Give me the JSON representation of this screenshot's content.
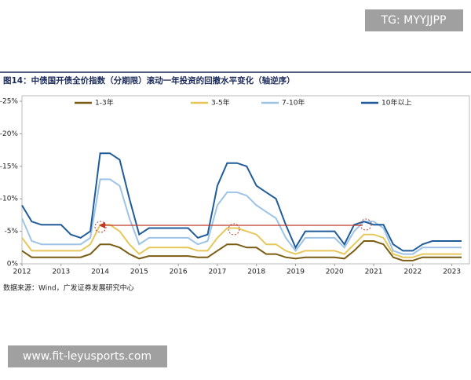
{
  "chart_data": {
    "type": "line",
    "title": "图14：中债国开债全价指数（分期限）滚动一年投资的回撤水平变化（轴逆序）",
    "source": "数据来源：Wind，广发证券发展研究中心",
    "watermark_top": "TG: MYYJJPP",
    "watermark_bottom": "www.fit-leyusports.com",
    "x": [
      2012.0,
      2012.25,
      2012.5,
      2012.75,
      2013.0,
      2013.25,
      2013.5,
      2013.75,
      2014.0,
      2014.25,
      2014.5,
      2014.75,
      2015.0,
      2015.25,
      2015.5,
      2015.75,
      2016.0,
      2016.25,
      2016.5,
      2016.75,
      2017.0,
      2017.25,
      2017.5,
      2017.75,
      2018.0,
      2018.25,
      2018.5,
      2018.75,
      2019.0,
      2019.25,
      2019.5,
      2019.75,
      2020.0,
      2020.25,
      2020.5,
      2020.75,
      2021.0,
      2021.25,
      2021.5,
      2021.75,
      2022.0,
      2022.25,
      2022.5,
      2022.75,
      2023.0,
      2023.25
    ],
    "xlim": [
      2012,
      2023.45
    ],
    "xticks": [
      2012,
      2013,
      2014,
      2015,
      2016,
      2017,
      2018,
      2019,
      2020,
      2021,
      2022,
      2023
    ],
    "ylim": [
      0,
      -25
    ],
    "yticks": [
      {
        "value": -25,
        "label": "-25%"
      },
      {
        "value": -20,
        "label": "-20%"
      },
      {
        "value": -15,
        "label": "-15%"
      },
      {
        "value": -10,
        "label": "-10%"
      },
      {
        "value": -5,
        "label": "-5%"
      },
      {
        "value": 0,
        "label": "0%"
      }
    ],
    "series": [
      {
        "name": "1-3年",
        "color": "#7a5c12",
        "values": [
          -2,
          -1,
          -1,
          -1,
          -1,
          -1,
          -1,
          -1.5,
          -3,
          -3,
          -2.5,
          -1.5,
          -0.8,
          -1.2,
          -1.2,
          -1.2,
          -1.2,
          -1.2,
          -1,
          -1,
          -2,
          -3,
          -3,
          -2.5,
          -2.5,
          -1.5,
          -1.5,
          -1,
          -0.8,
          -1,
          -1,
          -1,
          -1,
          -0.8,
          -2,
          -3.5,
          -3.5,
          -3,
          -1,
          -0.5,
          -0.5,
          -1,
          -1,
          -1,
          -1,
          -1
        ]
      },
      {
        "name": "3-5年",
        "color": "#e6c85a",
        "values": [
          -4,
          -2,
          -2,
          -2,
          -2,
          -2,
          -2,
          -3,
          -6,
          -6,
          -5,
          -3,
          -1.5,
          -2.5,
          -2.5,
          -2.5,
          -2.5,
          -2.5,
          -2,
          -2,
          -4,
          -5.5,
          -5.5,
          -5,
          -4.5,
          -3,
          -3,
          -2,
          -1.5,
          -2,
          -2,
          -2,
          -2,
          -1.5,
          -3,
          -4.5,
          -4.5,
          -4,
          -1.5,
          -1,
          -1,
          -1.5,
          -1.5,
          -1.5,
          -1.5,
          -1.5
        ]
      },
      {
        "name": "7-10年",
        "color": "#9dc3e6",
        "values": [
          -7,
          -3.5,
          -3,
          -3,
          -3,
          -3,
          -3,
          -4,
          -13,
          -13,
          -12,
          -7,
          -3,
          -4,
          -4,
          -4,
          -4,
          -4,
          -3,
          -3.5,
          -9,
          -11,
          -11,
          -10.5,
          -9,
          -8,
          -7,
          -4,
          -2,
          -4,
          -4,
          -4,
          -4,
          -2.5,
          -5,
          -6.5,
          -6.5,
          -5.5,
          -2,
          -1.5,
          -1.5,
          -2.5,
          -2.5,
          -2.5,
          -2.5,
          -2.5
        ]
      },
      {
        "name": "10年以上",
        "color": "#1f5c99",
        "values": [
          -9,
          -6.5,
          -6,
          -6,
          -6,
          -4.5,
          -4,
          -5,
          -17,
          -17,
          -16,
          -10,
          -4.5,
          -5.5,
          -5.5,
          -5.5,
          -5.5,
          -5.5,
          -4,
          -4.5,
          -12,
          -15.5,
          -15.5,
          -15,
          -12,
          -11,
          -10,
          -6,
          -2.5,
          -5,
          -5,
          -5,
          -5,
          -3,
          -6,
          -6.5,
          -6,
          -6,
          -3,
          -2,
          -2,
          -3,
          -3.5,
          -3.5,
          -3.5,
          -3.5
        ]
      }
    ]
  }
}
